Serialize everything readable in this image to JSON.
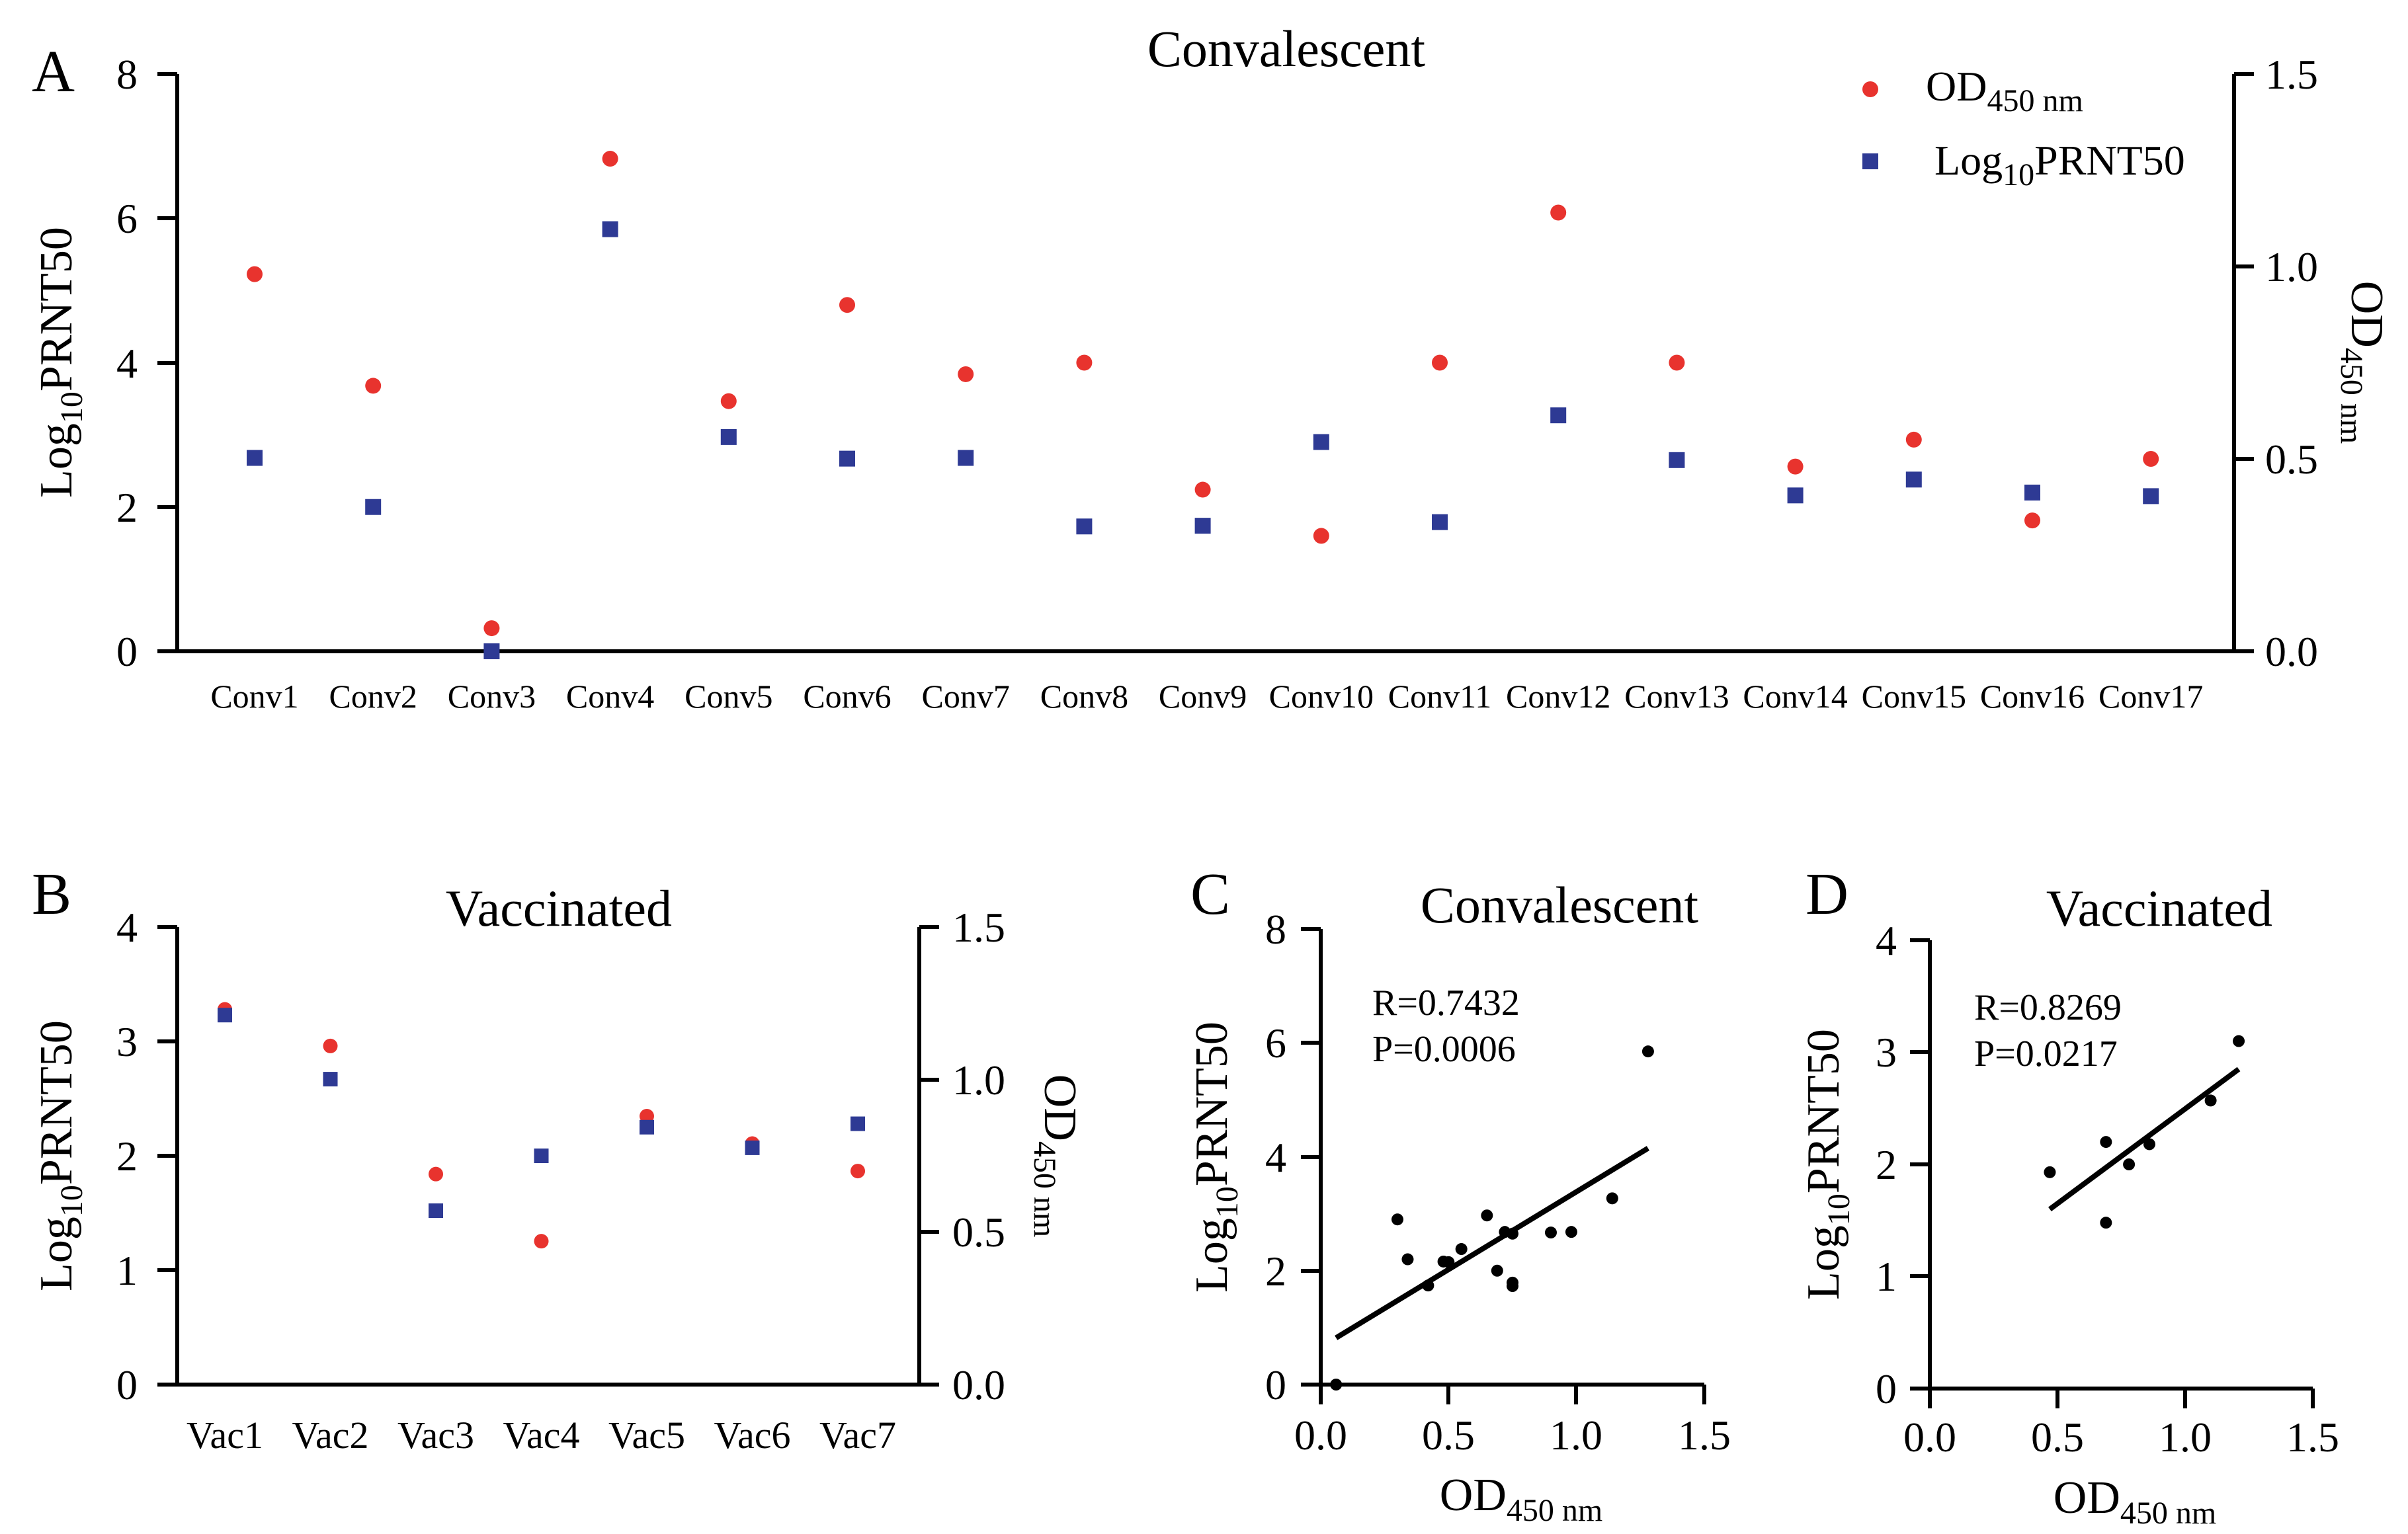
{
  "colors": {
    "od": "#e8332e",
    "prnt": "#2e3a94",
    "black": "#000000"
  },
  "panels": {
    "A": {
      "letter": "A",
      "title": "Convalescent",
      "left_axis": {
        "label_pre": "Log",
        "label_sub": "10",
        "label_post": "PRNT50",
        "ticks": [
          "0",
          "2",
          "4",
          "6",
          "8"
        ]
      },
      "right_axis": {
        "label_pre": "OD",
        "label_sub": "450 nm",
        "ticks": [
          "0.0",
          "0.5",
          "1.0",
          "1.5"
        ]
      },
      "legend": {
        "od_pre": "OD",
        "od_sub": "450 nm",
        "prnt_pre": "Log",
        "prnt_sub": "10",
        "prnt_post": "PRNT50"
      }
    },
    "B": {
      "letter": "B",
      "title": "Vaccinated",
      "left_axis": {
        "label_pre": "Log",
        "label_sub": "10",
        "label_post": "PRNT50",
        "ticks": [
          "0",
          "1",
          "2",
          "3",
          "4"
        ]
      },
      "right_axis": {
        "label_pre": "OD",
        "label_sub": "450 nm",
        "ticks": [
          "0.0",
          "0.5",
          "1.0",
          "1.5"
        ]
      }
    },
    "C": {
      "letter": "C",
      "title": "Convalescent",
      "xaxis": {
        "label_pre": "OD",
        "label_sub": "450 nm",
        "ticks": [
          "0.0",
          "0.5",
          "1.0",
          "1.5"
        ]
      },
      "yaxis": {
        "label_pre": "Log",
        "label_sub": "10",
        "label_post": "PRNT50",
        "ticks": [
          "0",
          "2",
          "4",
          "6",
          "8"
        ]
      },
      "r_text": "R=0.7432",
      "p_text": "P=0.0006"
    },
    "D": {
      "letter": "D",
      "title": "Vaccinated",
      "xaxis": {
        "label_pre": "OD",
        "label_sub": "450 nm",
        "ticks": [
          "0.0",
          "0.5",
          "1.0",
          "1.5"
        ]
      },
      "yaxis": {
        "label_pre": "Log",
        "label_sub": "10",
        "label_post": "PRNT50",
        "ticks": [
          "0",
          "1",
          "2",
          "3",
          "4"
        ]
      },
      "r_text": "R=0.8269",
      "p_text": "P=0.0217"
    }
  },
  "chart_data": [
    {
      "panel": "A",
      "type": "scatter",
      "title": "Convalescent",
      "categories": [
        "Conv1",
        "Conv2",
        "Conv3",
        "Conv4",
        "Conv5",
        "Conv6",
        "Conv7",
        "Conv8",
        "Conv9",
        "Conv10",
        "Conv11",
        "Conv12",
        "Conv13",
        "Conv14",
        "Conv15",
        "Conv16",
        "Conv17"
      ],
      "ylim_left": [
        0,
        8
      ],
      "ylim_right": [
        0,
        1.5
      ],
      "legend_position": "top-right",
      "series": [
        {
          "name": "OD450 nm",
          "axis": "right",
          "marker": "circle",
          "values": [
            0.98,
            0.69,
            0.06,
            1.28,
            0.65,
            0.9,
            0.72,
            0.75,
            0.42,
            0.3,
            0.75,
            1.14,
            0.75,
            0.48,
            0.55,
            0.34,
            0.5
          ]
        },
        {
          "name": "Log10PRNT50",
          "axis": "left",
          "marker": "square",
          "values": [
            2.68,
            2.0,
            0.0,
            5.85,
            2.97,
            2.67,
            2.68,
            1.73,
            1.74,
            2.9,
            1.79,
            3.27,
            2.65,
            2.16,
            2.38,
            2.2,
            2.15
          ]
        }
      ]
    },
    {
      "panel": "B",
      "type": "scatter",
      "title": "Vaccinated",
      "categories": [
        "Vac1",
        "Vac2",
        "Vac3",
        "Vac4",
        "Vac5",
        "Vac6",
        "Vac7"
      ],
      "ylim_left": [
        0,
        4
      ],
      "ylim_right": [
        0,
        1.5
      ],
      "series": [
        {
          "name": "OD450 nm",
          "axis": "right",
          "marker": "circle",
          "values": [
            1.23,
            1.11,
            0.69,
            0.47,
            0.88,
            0.79,
            0.7
          ]
        },
        {
          "name": "Log10PRNT50",
          "axis": "left",
          "marker": "square",
          "values": [
            3.23,
            2.67,
            1.52,
            2.0,
            2.25,
            2.07,
            2.28
          ]
        }
      ]
    },
    {
      "panel": "C",
      "type": "scatter",
      "title": "Convalescent",
      "xlabel": "OD450 nm",
      "ylabel": "Log10PRNT50",
      "xlim": [
        0,
        1.5
      ],
      "ylim": [
        0,
        8
      ],
      "points": [
        [
          0.06,
          0.0
        ],
        [
          0.3,
          2.9
        ],
        [
          0.34,
          2.2
        ],
        [
          0.42,
          1.74
        ],
        [
          0.48,
          2.16
        ],
        [
          0.5,
          2.15
        ],
        [
          0.55,
          2.38
        ],
        [
          0.65,
          2.97
        ],
        [
          0.69,
          2.0
        ],
        [
          0.72,
          2.68
        ],
        [
          0.75,
          1.73
        ],
        [
          0.75,
          1.79
        ],
        [
          0.75,
          2.65
        ],
        [
          0.9,
          2.67
        ],
        [
          0.98,
          2.68
        ],
        [
          1.14,
          3.27
        ],
        [
          1.28,
          5.85
        ]
      ],
      "fit_line": {
        "x": [
          0.06,
          1.28
        ],
        "y": [
          0.82,
          4.15
        ]
      },
      "annotations": [
        "R=0.7432",
        "P=0.0006"
      ]
    },
    {
      "panel": "D",
      "type": "scatter",
      "title": "Vaccinated",
      "xlabel": "OD450 nm",
      "ylabel": "Log10PRNT50",
      "xlim": [
        0,
        1.5
      ],
      "ylim": [
        0,
        4
      ],
      "points": [
        [
          0.47,
          1.93
        ],
        [
          0.69,
          1.48
        ],
        [
          0.69,
          2.2
        ],
        [
          0.78,
          2.0
        ],
        [
          0.86,
          2.18
        ],
        [
          1.1,
          2.57
        ],
        [
          1.21,
          3.1
        ]
      ],
      "fit_line": {
        "x": [
          0.47,
          1.21
        ],
        "y": [
          1.6,
          2.85
        ]
      },
      "annotations": [
        "R=0.8269",
        "P=0.0217"
      ]
    }
  ]
}
